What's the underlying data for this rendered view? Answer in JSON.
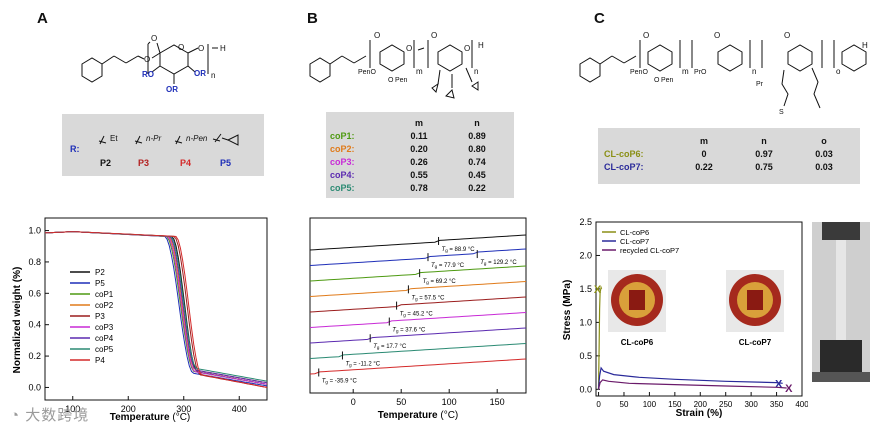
{
  "panels": [
    {
      "letter": "A"
    },
    {
      "letter": "B"
    },
    {
      "letter": "C"
    }
  ],
  "structA": {
    "repeat": "n",
    "end": "H",
    "subs": [
      "RO",
      "OR",
      "OR"
    ]
  },
  "structB": {
    "repeats": [
      "m",
      "n"
    ],
    "end": "H",
    "subs": [
      "PenO",
      "O",
      "Pen"
    ]
  },
  "structC": {
    "repeats": [
      "m",
      "n",
      "o"
    ],
    "end": "H",
    "subs": [
      "PenO",
      "O",
      "Pen",
      "Pr",
      "PrO",
      "S"
    ]
  },
  "rgroups": {
    "r_label": "R:",
    "items": [
      {
        "label": "P2",
        "group": "Et",
        "color": "#111111"
      },
      {
        "label": "P3",
        "group": "n-Pr",
        "color": "#b22020"
      },
      {
        "label": "P4",
        "group": "n-Pen",
        "color": "#d42a2a"
      },
      {
        "label": "P5",
        "group": "",
        "color": "#1f2fb8"
      }
    ]
  },
  "tableB": {
    "headers": [
      "m",
      "n"
    ],
    "rows": [
      {
        "name": "coP1:",
        "m": "0.11",
        "n": "0.89",
        "color": "#4e9a12"
      },
      {
        "name": "coP2:",
        "m": "0.20",
        "n": "0.80",
        "color": "#e07b1a"
      },
      {
        "name": "coP3:",
        "m": "0.26",
        "n": "0.74",
        "color": "#c82ad6"
      },
      {
        "name": "coP4:",
        "m": "0.55",
        "n": "0.45",
        "color": "#5b2ab0"
      },
      {
        "name": "coP5:",
        "m": "0.78",
        "n": "0.22",
        "color": "#2b8a73"
      }
    ]
  },
  "tableC": {
    "headers": [
      "m",
      "n",
      "o"
    ],
    "rows": [
      {
        "name": "CL-coP6:",
        "m": "0",
        "n": "0.97",
        "o": "0.03",
        "color": "#8a8f15"
      },
      {
        "name": "CL-coP7:",
        "m": "0.22",
        "n": "0.75",
        "o": "0.03",
        "color": "#2a2a9a"
      }
    ]
  },
  "chart_data": [
    {
      "type": "line",
      "title": "",
      "xlabel": "Temperature",
      "xunit": "(°C)",
      "ylabel": "Normalized weight (%)",
      "xlim": [
        50,
        450
      ],
      "ylim": [
        -0.08,
        1.08
      ],
      "xticks": [
        "100",
        "200",
        "300",
        "400"
      ],
      "yticks": [
        "0.0",
        "0.2",
        "0.4",
        "0.6",
        "0.8",
        "1.0"
      ],
      "legend_position": "right",
      "series": [
        {
          "name": "P2",
          "color": "#111111",
          "onset": 278,
          "end": 325,
          "residue": 0.02
        },
        {
          "name": "P5",
          "color": "#1f2fb8",
          "onset": 265,
          "end": 318,
          "residue": 0.01
        },
        {
          "name": "coP1",
          "color": "#4e9a12",
          "onset": 268,
          "end": 320,
          "residue": 0.02
        },
        {
          "name": "coP2",
          "color": "#e07b1a",
          "onset": 272,
          "end": 322,
          "residue": 0.03
        },
        {
          "name": "P3",
          "color": "#9b1d1d",
          "onset": 282,
          "end": 330,
          "residue": 0.0
        },
        {
          "name": "coP3",
          "color": "#c82ad6",
          "onset": 270,
          "end": 321,
          "residue": 0.02
        },
        {
          "name": "coP4",
          "color": "#5b2ab0",
          "onset": 274,
          "end": 323,
          "residue": 0.03
        },
        {
          "name": "coP5",
          "color": "#2b8a73",
          "onset": 276,
          "end": 324,
          "residue": 0.04
        },
        {
          "name": "P4",
          "color": "#d42a2a",
          "onset": 285,
          "end": 333,
          "residue": 0.0
        }
      ]
    },
    {
      "type": "line",
      "title": "",
      "xlabel": "Temperature",
      "xunit": "(°C)",
      "ylabel": "",
      "xlim": [
        -45,
        180
      ],
      "xticks": [
        "0",
        "50",
        "100",
        "150"
      ],
      "series": [
        {
          "name": "P2",
          "color": "#111111",
          "tg": [
            "88.9 °C"
          ],
          "tg_at": [
            88.9
          ],
          "offset": 10
        },
        {
          "name": "P5",
          "color": "#1f2fb8",
          "tg": [
            "77.9 °C",
            "129.2 °C"
          ],
          "tg_at": [
            77.9,
            129.2
          ],
          "offset": 9
        },
        {
          "name": "coP1",
          "color": "#4e9a12",
          "tg": [
            "69.2 °C"
          ],
          "tg_at": [
            69.2
          ],
          "offset": 8
        },
        {
          "name": "coP2",
          "color": "#e07b1a",
          "tg": [
            "57.5 °C"
          ],
          "tg_at": [
            57.5
          ],
          "offset": 7
        },
        {
          "name": "P3",
          "color": "#9b1d1d",
          "tg": [
            "45.2 °C"
          ],
          "tg_at": [
            45.2
          ],
          "offset": 6
        },
        {
          "name": "coP3",
          "color": "#c82ad6",
          "tg": [
            "37.6 °C"
          ],
          "tg_at": [
            37.6
          ],
          "offset": 5
        },
        {
          "name": "coP4",
          "color": "#5b2ab0",
          "tg": [
            "17.7 °C"
          ],
          "tg_at": [
            17.7
          ],
          "offset": 4
        },
        {
          "name": "coP5",
          "color": "#2b8a73",
          "tg": [
            "-11.2 °C"
          ],
          "tg_at": [
            -11.2
          ],
          "offset": 3
        },
        {
          "name": "P4",
          "color": "#d42a2a",
          "tg": [
            "-35.9 °C"
          ],
          "tg_at": [
            -35.9
          ],
          "offset": 2
        }
      ]
    },
    {
      "type": "line",
      "title": "",
      "xlabel": "Strain (%)",
      "ylabel": "Stress (MPa)",
      "xlim": [
        -5,
        400
      ],
      "ylim": [
        -0.1,
        2.5
      ],
      "xticks": [
        "0",
        "50",
        "100",
        "150",
        "200",
        "250",
        "300",
        "350",
        "400"
      ],
      "yticks": [
        "0.0",
        "0.5",
        "1.0",
        "1.5",
        "2.0",
        "2.5"
      ],
      "legend_position": "top-left",
      "series": [
        {
          "name": "CL-coP6",
          "color": "#8a8f15",
          "x": [
            0,
            1,
            2,
            3,
            5,
            6
          ],
          "y": [
            0,
            0.6,
            1.2,
            1.45,
            1.52,
            1.5
          ]
        },
        {
          "name": "CL-coP7",
          "color": "#2a2a9a",
          "x": [
            0,
            2,
            5,
            10,
            30,
            80,
            150,
            250,
            350,
            362
          ],
          "y": [
            0,
            0.2,
            0.32,
            0.27,
            0.22,
            0.18,
            0.15,
            0.12,
            0.1,
            0.09
          ]
        },
        {
          "name": "recycled CL-coP7",
          "color": "#6a1a6a",
          "x": [
            0,
            3,
            8,
            20,
            60,
            150,
            250,
            350,
            370
          ],
          "y": [
            0,
            0.1,
            0.14,
            0.12,
            0.09,
            0.07,
            0.05,
            0.03,
            0.02
          ]
        }
      ],
      "annotations": [
        "CL-coP6",
        "CL-coP7"
      ],
      "break_markers": [
        "X",
        "X",
        "X"
      ]
    }
  ],
  "watermark": "大数跨境"
}
